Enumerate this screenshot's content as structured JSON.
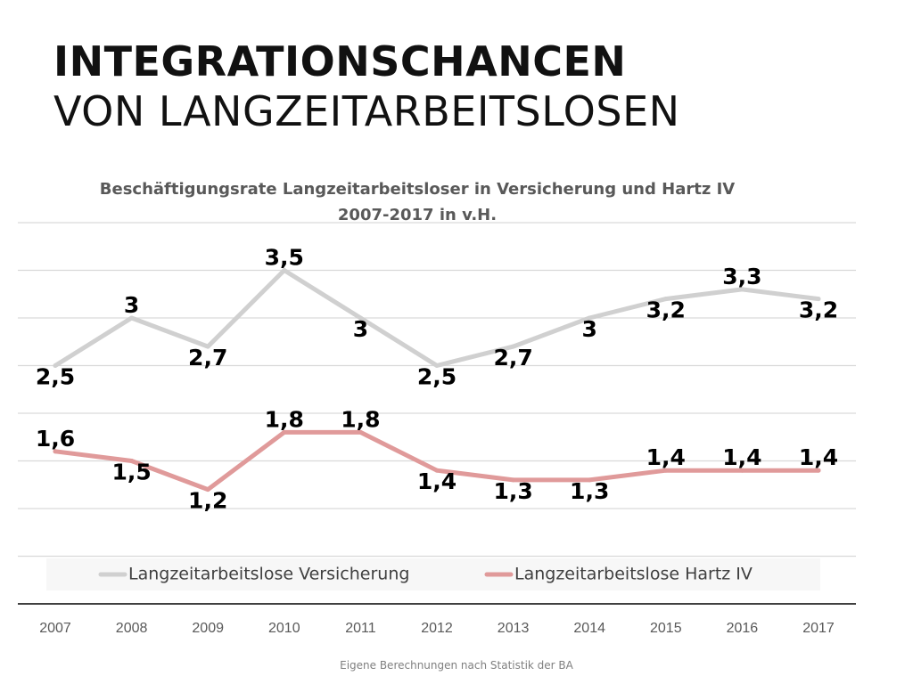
{
  "slide": {
    "title_line1": "INTEGRATIONSCHANCEN",
    "title_line2": "VON LANGZEITARBEITSLOSEN",
    "footer": "Eigene Berechnungen nach Statistik der BA"
  },
  "chart_data": {
    "type": "line",
    "title": "Beschäftigungsrate Langzeitarbeitsloser in Versicherung und Hartz IV",
    "subtitle": "2007-2017 in v.H.",
    "categories": [
      "2007",
      "2008",
      "2009",
      "2010",
      "2011",
      "2012",
      "2013",
      "2014",
      "2015",
      "2016",
      "2017"
    ],
    "series": [
      {
        "name": "Langzeitarbeitslose Versicherung",
        "color": "#d0d0d0",
        "values": [
          2.5,
          3,
          2.7,
          3.5,
          3,
          2.5,
          2.7,
          3,
          3.2,
          3.3,
          3.2
        ],
        "labels": [
          "2,5",
          "3",
          "2,7",
          "3,5",
          "3",
          "2,5",
          "2,7",
          "3",
          "3,2",
          "3,3",
          "3,2"
        ]
      },
      {
        "name": "Langzeitarbeitslose Hartz IV",
        "color": "#e09a9a",
        "values": [
          1.6,
          1.5,
          1.2,
          1.8,
          1.8,
          1.4,
          1.3,
          1.3,
          1.4,
          1.4,
          1.4
        ],
        "labels": [
          "1,6",
          "1,5",
          "1,2",
          "1,8",
          "1,8",
          "1,4",
          "1,3",
          "1,3",
          "1,4",
          "1,4",
          "1,4"
        ]
      }
    ],
    "ylim": [
      0,
      4.0
    ],
    "grid": true,
    "legend_position": "bottom",
    "xlabel": "",
    "ylabel": ""
  }
}
